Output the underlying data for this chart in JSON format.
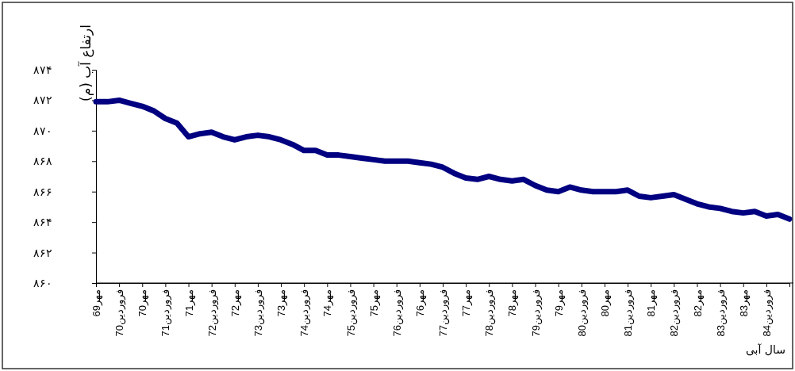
{
  "chart_data": {
    "type": "line",
    "ylabel": "ارتفاع آب (م)",
    "xlabel": "سال آبی",
    "categories": [
      "مهر69",
      null,
      "فروردین70",
      null,
      "مهر70",
      null,
      "فروردین71",
      null,
      "مهر71",
      null,
      "فروردین72",
      null,
      "مهر72",
      null,
      "فروردین73",
      null,
      "مهر73",
      null,
      "فروردین74",
      null,
      "مهر74",
      null,
      "فروردین75",
      null,
      "مهر75",
      null,
      "فروردین76",
      null,
      "مهر76",
      null,
      "فروردین77",
      null,
      "مهر77",
      null,
      "فروردین78",
      null,
      "مهر78",
      null,
      "فروردین79",
      null,
      "مهر79",
      null,
      "فروردین80",
      null,
      "مهر80",
      null,
      "فروردین81",
      null,
      "مهر81",
      null,
      "فروردین82",
      null,
      "مهر82",
      null,
      "فروردین83",
      null,
      "مهر83",
      null,
      "فروردین84",
      null,
      null
    ],
    "series": [
      {
        "color": "#000080",
        "values": [
          871.9,
          871.9,
          872.0,
          871.8,
          871.6,
          871.3,
          870.8,
          870.5,
          869.6,
          869.8,
          869.9,
          869.6,
          869.4,
          869.6,
          869.7,
          869.6,
          869.4,
          869.1,
          868.7,
          868.7,
          868.4,
          868.4,
          868.3,
          868.2,
          868.1,
          868.0,
          868.0,
          868.0,
          867.9,
          867.8,
          867.6,
          867.2,
          866.9,
          866.8,
          867.0,
          866.8,
          866.7,
          866.8,
          866.4,
          866.1,
          866.0,
          866.3,
          866.1,
          866.0,
          866.0,
          866.0,
          866.1,
          865.7,
          865.6,
          865.7,
          865.8,
          865.5,
          865.2,
          865.0,
          864.9,
          864.7,
          864.6,
          864.7,
          864.4,
          864.5,
          864.2
        ]
      }
    ],
    "ylim": [
      860,
      874
    ],
    "yticks": [
      {
        "value": 860,
        "label": "۸۶۰"
      },
      {
        "value": 862,
        "label": "۸۶۲"
      },
      {
        "value": 864,
        "label": "۸۶۴"
      },
      {
        "value": 866,
        "label": "۸۶۶"
      },
      {
        "value": 868,
        "label": "۸۶۸"
      },
      {
        "value": 870,
        "label": "۸۷۰"
      },
      {
        "value": 872,
        "label": "۸۷۲"
      },
      {
        "value": 874,
        "label": "۸۷۴"
      }
    ],
    "line_style": "solid",
    "marker": "none",
    "grid": false
  }
}
